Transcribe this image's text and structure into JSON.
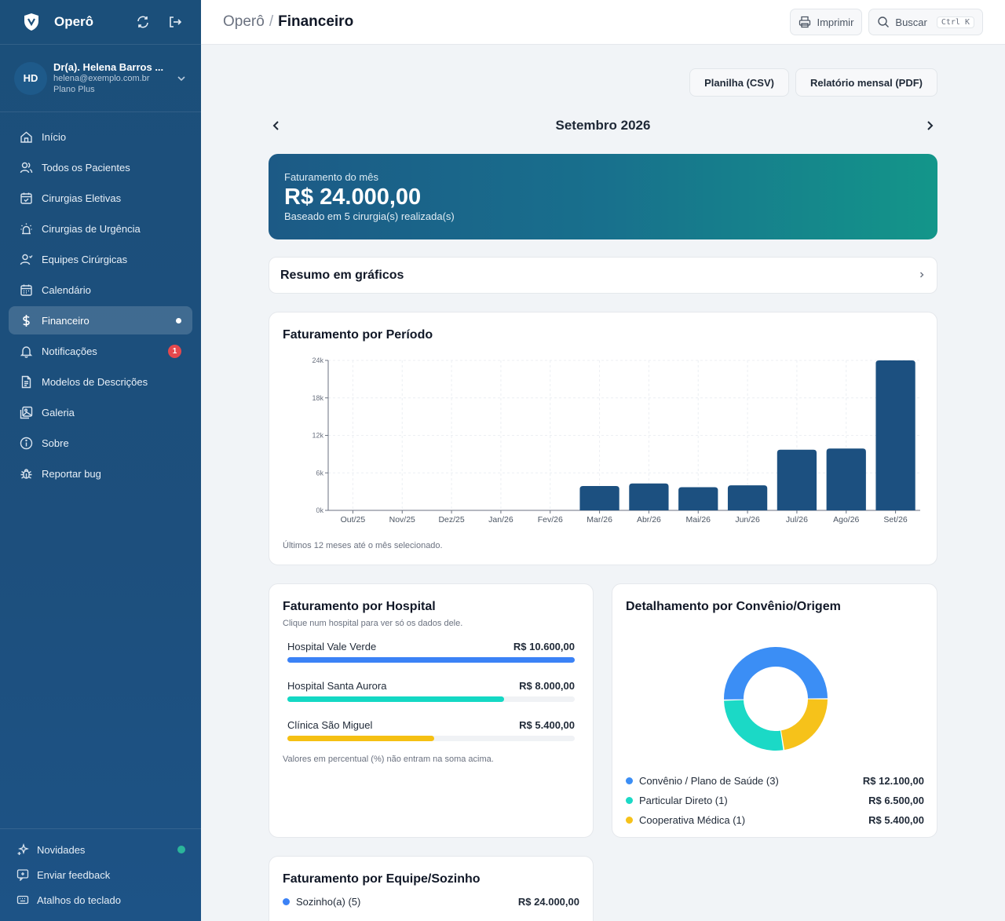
{
  "sidebar": {
    "brand": "Operô",
    "user": {
      "initials": "HD",
      "name": "Dr(a). Helena Barros ...",
      "email": "helena@exemplo.com.br",
      "plan": "Plano Plus"
    },
    "items": [
      {
        "label": "Início",
        "icon": "home-icon"
      },
      {
        "label": "Todos os Pacientes",
        "icon": "users-icon"
      },
      {
        "label": "Cirurgias Eletivas",
        "icon": "calendar-check-icon"
      },
      {
        "label": "Cirurgias de Urgência",
        "icon": "siren-icon"
      },
      {
        "label": "Equipes Cirúrgicas",
        "icon": "team-icon"
      },
      {
        "label": "Calendário",
        "icon": "calendar-icon"
      },
      {
        "label": "Financeiro",
        "icon": "dollar-icon"
      },
      {
        "label": "Notificações",
        "icon": "bell-icon",
        "badge": "1"
      },
      {
        "label": "Modelos de Descrições",
        "icon": "document-icon"
      },
      {
        "label": "Galeria",
        "icon": "gallery-icon"
      },
      {
        "label": "Sobre",
        "icon": "info-icon"
      },
      {
        "label": "Reportar bug",
        "icon": "bug-icon"
      }
    ],
    "bottom": [
      {
        "label": "Novidades",
        "icon": "sparkles-icon"
      },
      {
        "label": "Enviar feedback",
        "icon": "feedback-icon"
      },
      {
        "label": "Atalhos do teclado",
        "icon": "keyboard-icon"
      }
    ]
  },
  "header": {
    "root": "Operô",
    "sep": "/",
    "current": "Financeiro",
    "print_label": "Imprimir",
    "search_label": "Buscar",
    "search_kbd": "Ctrl K"
  },
  "exports": {
    "csv": "Planilha (CSV)",
    "pdf": "Relatório mensal (PDF)"
  },
  "month": {
    "label": "Setembro 2026"
  },
  "revenue": {
    "label": "Faturamento do mês",
    "value": "R$ 24.000,00",
    "sub": "Baseado em 5 cirurgia(s) realizada(s)"
  },
  "summary": {
    "title": "Resumo em gráficos"
  },
  "period": {
    "title": "Faturamento por Período",
    "note": "Últimos 12 meses até o mês selecionado."
  },
  "chart_data": {
    "type": "bar",
    "categories": [
      "Out/25",
      "Nov/25",
      "Dez/25",
      "Jan/26",
      "Fev/26",
      "Mar/26",
      "Abr/26",
      "Mai/26",
      "Jun/26",
      "Jul/26",
      "Ago/26",
      "Set/26"
    ],
    "values": [
      0,
      0,
      0,
      0,
      0,
      3900,
      4300,
      3700,
      4000,
      9700,
      9900,
      24000
    ],
    "ylim": [
      0,
      24000
    ],
    "yticks": [
      0,
      6000,
      12000,
      18000,
      24000
    ],
    "ytick_labels": [
      "0k",
      "6k",
      "12k",
      "18k",
      "24k"
    ],
    "grid": true,
    "colors": {
      "bar": "#1c5080"
    }
  },
  "hospitals": {
    "title": "Faturamento por Hospital",
    "sub": "Clique num hospital para ver só os dados dele.",
    "items": [
      {
        "name": "Hospital Vale Verde",
        "value": "R$ 10.600,00",
        "fraction": 1.0,
        "color": "#3b82f6"
      },
      {
        "name": "Hospital Santa Aurora",
        "value": "R$ 8.000,00",
        "fraction": 0.755,
        "color": "#14d8c4"
      },
      {
        "name": "Clínica São Miguel",
        "value": "R$ 5.400,00",
        "fraction": 0.51,
        "color": "#f5c013"
      }
    ],
    "note": "Valores em percentual (%) não entram na soma acima."
  },
  "convenio": {
    "title": "Detalhamento por Convênio/Origem",
    "items": [
      {
        "name": "Convênio / Plano de Saúde (3)",
        "value": "R$ 12.100,00",
        "amount": 12100,
        "color": "#3b8ef5"
      },
      {
        "name": "Particular Direto (1)",
        "value": "R$ 6.500,00",
        "amount": 6500,
        "color": "#1bd9c6"
      },
      {
        "name": "Cooperativa Médica (1)",
        "value": "R$ 5.400,00",
        "amount": 5400,
        "color": "#f6c21a"
      }
    ]
  },
  "team": {
    "title": "Faturamento por Equipe/Sozinho",
    "items": [
      {
        "name": "Sozinho(a) (5)",
        "value": "R$ 24.000,00",
        "color": "#3b82f6"
      }
    ]
  }
}
